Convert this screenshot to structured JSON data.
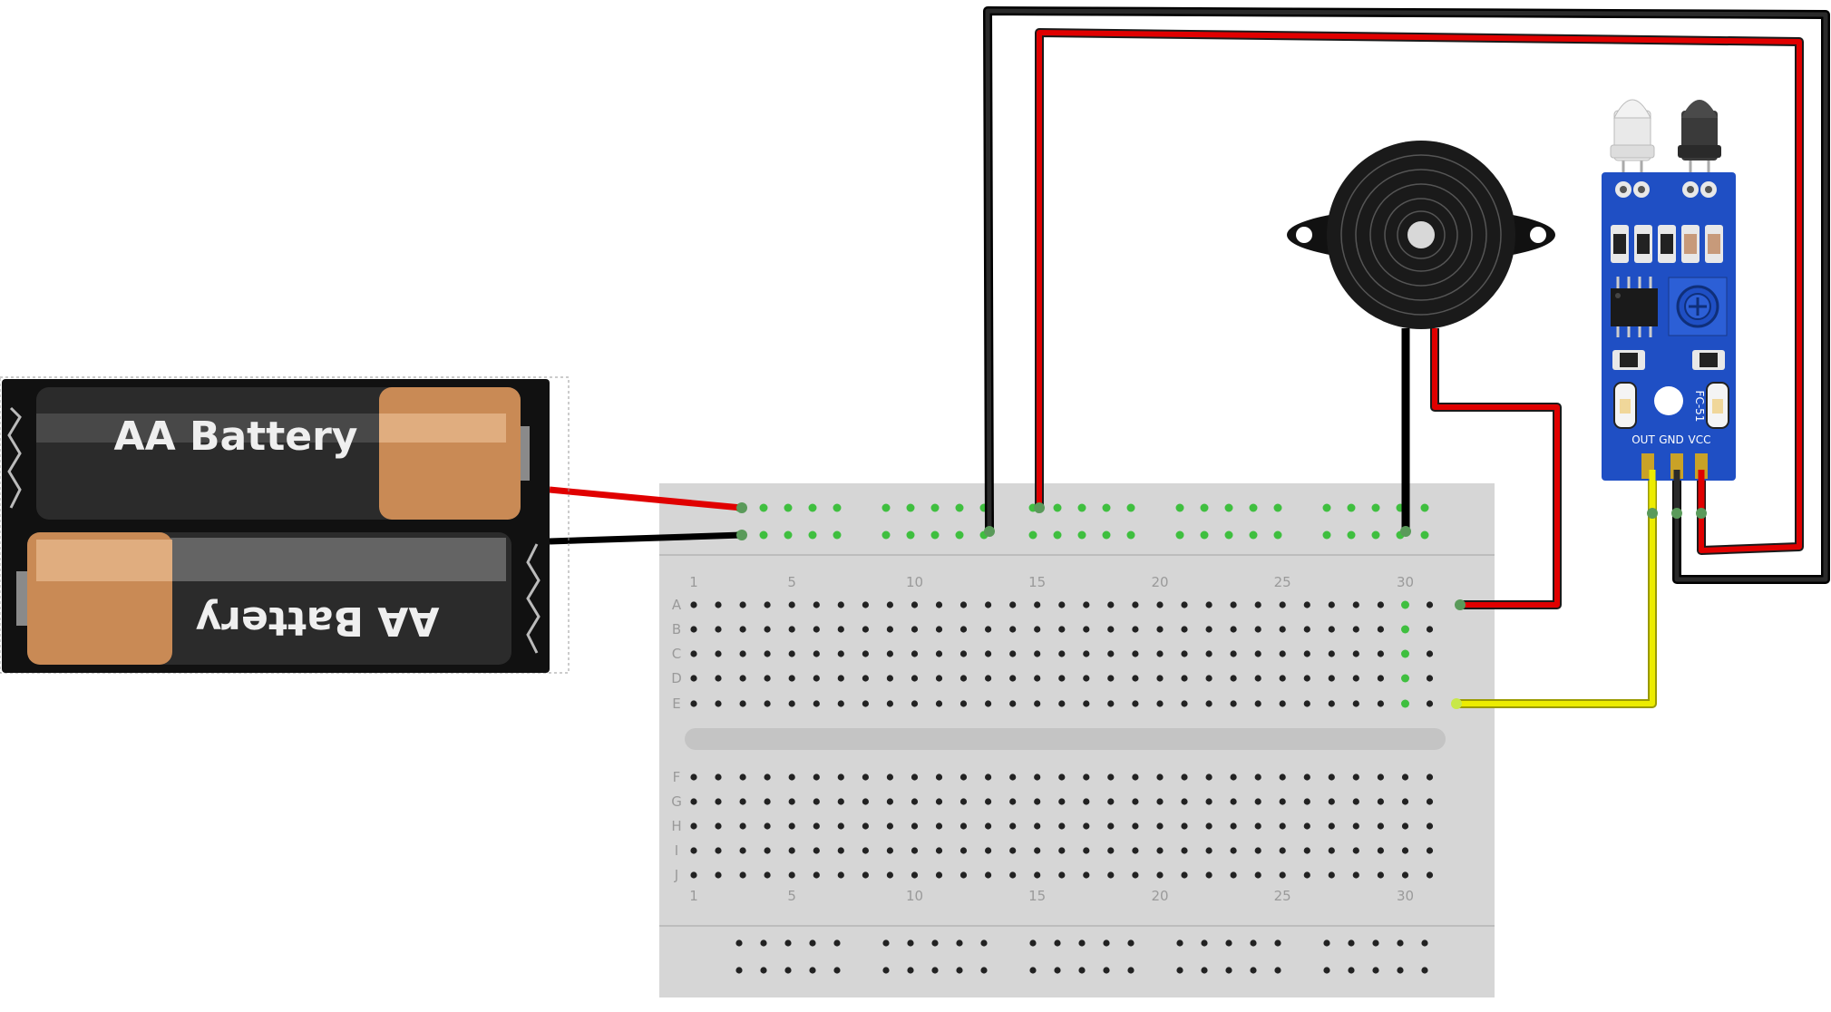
{
  "battery": {
    "cell_top_label": "AA Battery",
    "cell_bottom_label": "AA Battery"
  },
  "breadboard": {
    "column_numbers": [
      "1",
      "5",
      "10",
      "15",
      "20",
      "25",
      "30"
    ],
    "rows_top": [
      "A",
      "B",
      "C",
      "D",
      "E"
    ],
    "rows_bottom": [
      "F",
      "G",
      "H",
      "I",
      "J"
    ]
  },
  "sensor": {
    "model_label": "FC-51",
    "pin_out": "OUT",
    "pin_gnd": "GND",
    "pin_vcc": "VCC"
  },
  "colors": {
    "wire_red": "#e00000",
    "wire_black": "#1a1a1a",
    "wire_yellow": "#e8e400",
    "board_blue": "#1f4fc4",
    "breadboard": "#d6d6d6",
    "hole_green": "#3fbf3f"
  }
}
